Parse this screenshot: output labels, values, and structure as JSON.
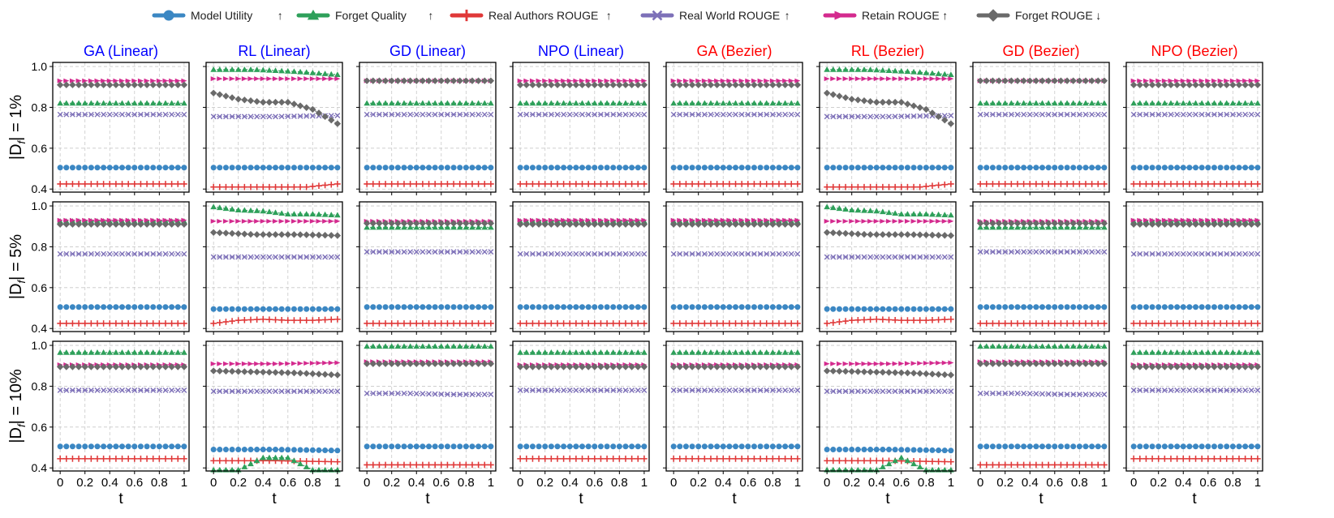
{
  "colors": {
    "model_utility": "#3b87c3",
    "forget_quality": "#2ea05a",
    "real_authors": "#e03838",
    "real_world": "#7d70b8",
    "retain": "#d42a8e",
    "forget_rouge": "#6a6a6a",
    "linear_title": "#0000ff",
    "bezier_title": "#ff0000"
  },
  "legend": [
    {
      "key": "model_utility",
      "label": "Model Utility",
      "arrow": "↑",
      "marker": "circle"
    },
    {
      "key": "forget_quality",
      "label": "Forget Quality",
      "arrow": "↑",
      "marker": "triangle"
    },
    {
      "key": "real_authors",
      "label": "Real Authors ROUGE",
      "arrow": "↑",
      "marker": "plus"
    },
    {
      "key": "real_world",
      "label": "Real World ROUGE",
      "arrow": "↑",
      "marker": "x"
    },
    {
      "key": "retain",
      "label": "Retain ROUGE",
      "arrow": "↑",
      "marker": "tri-right"
    },
    {
      "key": "forget_rouge",
      "label": "Forget ROUGE",
      "arrow": "↓",
      "marker": "diamond"
    }
  ],
  "chart_data": {
    "type": "line",
    "columns": [
      "GA (Linear)",
      "RL (Linear)",
      "GD (Linear)",
      "NPO (Linear)",
      "GA (Bezier)",
      "RL (Bezier)",
      "GD (Bezier)",
      "NPO (Bezier)"
    ],
    "column_colors": [
      "linear_title",
      "linear_title",
      "linear_title",
      "linear_title",
      "bezier_title",
      "bezier_title",
      "bezier_title",
      "bezier_title"
    ],
    "rows": [
      "|D_f| = 1%",
      "|D_f| = 5%",
      "|D_f| = 10%"
    ],
    "row_label_prefix": "|D",
    "row_label_sub": "f",
    "row_label_values": [
      "| = 1%",
      "| = 5%",
      "| = 10%"
    ],
    "xlabel": "t",
    "x_ticks": [
      "0",
      "0.2",
      "0.4",
      "0.6",
      "0.8",
      "1"
    ],
    "y_ticks": [
      "0.4",
      "0.6",
      "0.8",
      "1.0"
    ],
    "xlim": [
      -0.06,
      1.04
    ],
    "ylim": [
      0.385,
      1.02
    ],
    "points": 21,
    "grid": true,
    "panels": [
      [
        {
          "model_utility": [
            0.505,
            0.505
          ],
          "forget_quality": [
            0.82,
            0.82
          ],
          "real_authors": [
            0.425,
            0.425
          ],
          "real_world": [
            0.765,
            0.765
          ],
          "retain": [
            0.93,
            0.93
          ],
          "forget_rouge": [
            0.91,
            0.91
          ]
        },
        {
          "model_utility": [
            0.505,
            0.505
          ],
          "forget_quality": [
            0.985,
            0.985,
            0.975,
            0.96
          ],
          "real_authors": [
            0.41,
            0.41,
            0.41,
            0.41,
            0.425
          ],
          "real_world": [
            0.755,
            0.755,
            0.76
          ],
          "retain": [
            0.94,
            0.94
          ],
          "forget_rouge": [
            0.87,
            0.84,
            0.825,
            0.825,
            0.79,
            0.72
          ]
        },
        {
          "model_utility": [
            0.505,
            0.505
          ],
          "forget_quality": [
            0.82,
            0.82
          ],
          "real_authors": [
            0.425,
            0.425
          ],
          "real_world": [
            0.765,
            0.765
          ],
          "retain": [
            0.93,
            0.93
          ],
          "forget_rouge": [
            0.93,
            0.93
          ]
        },
        {
          "model_utility": [
            0.505,
            0.505
          ],
          "forget_quality": [
            0.82,
            0.82
          ],
          "real_authors": [
            0.425,
            0.425
          ],
          "real_world": [
            0.765,
            0.765
          ],
          "retain": [
            0.93,
            0.93
          ],
          "forget_rouge": [
            0.91,
            0.91
          ]
        },
        {
          "model_utility": [
            0.505,
            0.505
          ],
          "forget_quality": [
            0.82,
            0.82
          ],
          "real_authors": [
            0.425,
            0.425
          ],
          "real_world": [
            0.765,
            0.765
          ],
          "retain": [
            0.93,
            0.93
          ],
          "forget_rouge": [
            0.91,
            0.91
          ]
        },
        {
          "model_utility": [
            0.505,
            0.505
          ],
          "forget_quality": [
            0.985,
            0.985,
            0.975,
            0.96
          ],
          "real_authors": [
            0.41,
            0.41,
            0.41,
            0.41,
            0.425
          ],
          "real_world": [
            0.755,
            0.755,
            0.76
          ],
          "retain": [
            0.94,
            0.94
          ],
          "forget_rouge": [
            0.87,
            0.84,
            0.825,
            0.825,
            0.79,
            0.72
          ]
        },
        {
          "model_utility": [
            0.505,
            0.505
          ],
          "forget_quality": [
            0.82,
            0.82
          ],
          "real_authors": [
            0.425,
            0.425
          ],
          "real_world": [
            0.765,
            0.765
          ],
          "retain": [
            0.93,
            0.93
          ],
          "forget_rouge": [
            0.93,
            0.93
          ]
        },
        {
          "model_utility": [
            0.505,
            0.505
          ],
          "forget_quality": [
            0.82,
            0.82
          ],
          "real_authors": [
            0.425,
            0.425
          ],
          "real_world": [
            0.765,
            0.765
          ],
          "retain": [
            0.93,
            0.93
          ],
          "forget_rouge": [
            0.91,
            0.91
          ]
        }
      ],
      [
        {
          "model_utility": [
            0.505,
            0.505
          ],
          "forget_quality": [
            0.925,
            0.925
          ],
          "real_authors": [
            0.425,
            0.425
          ],
          "real_world": [
            0.765,
            0.765
          ],
          "retain": [
            0.93,
            0.93
          ],
          "forget_rouge": [
            0.91,
            0.91
          ]
        },
        {
          "model_utility": [
            0.495,
            0.495
          ],
          "forget_quality": [
            0.995,
            0.98,
            0.975,
            0.96,
            0.96,
            0.955
          ],
          "real_authors": [
            0.425,
            0.44,
            0.445,
            0.44,
            0.44,
            0.445
          ],
          "real_world": [
            0.75,
            0.75
          ],
          "retain": [
            0.925,
            0.925
          ],
          "forget_rouge": [
            0.87,
            0.86,
            0.86,
            0.855
          ]
        },
        {
          "model_utility": [
            0.505,
            0.505
          ],
          "forget_quality": [
            0.895,
            0.895
          ],
          "real_authors": [
            0.425,
            0.425
          ],
          "real_world": [
            0.775,
            0.775
          ],
          "retain": [
            0.925,
            0.925
          ],
          "forget_rouge": [
            0.915,
            0.915
          ]
        },
        {
          "model_utility": [
            0.505,
            0.505
          ],
          "forget_quality": [
            0.925,
            0.925
          ],
          "real_authors": [
            0.425,
            0.425
          ],
          "real_world": [
            0.765,
            0.765
          ],
          "retain": [
            0.93,
            0.93
          ],
          "forget_rouge": [
            0.91,
            0.91
          ]
        },
        {
          "model_utility": [
            0.505,
            0.505
          ],
          "forget_quality": [
            0.925,
            0.925
          ],
          "real_authors": [
            0.425,
            0.425
          ],
          "real_world": [
            0.765,
            0.765
          ],
          "retain": [
            0.93,
            0.93
          ],
          "forget_rouge": [
            0.91,
            0.91
          ]
        },
        {
          "model_utility": [
            0.495,
            0.495
          ],
          "forget_quality": [
            0.995,
            0.98,
            0.975,
            0.96,
            0.96,
            0.955
          ],
          "real_authors": [
            0.425,
            0.44,
            0.445,
            0.44,
            0.44,
            0.445
          ],
          "real_world": [
            0.75,
            0.75
          ],
          "retain": [
            0.925,
            0.925
          ],
          "forget_rouge": [
            0.87,
            0.86,
            0.86,
            0.855
          ]
        },
        {
          "model_utility": [
            0.505,
            0.505
          ],
          "forget_quality": [
            0.895,
            0.895
          ],
          "real_authors": [
            0.425,
            0.425
          ],
          "real_world": [
            0.775,
            0.775
          ],
          "retain": [
            0.925,
            0.925
          ],
          "forget_rouge": [
            0.915,
            0.915
          ]
        },
        {
          "model_utility": [
            0.505,
            0.505
          ],
          "forget_quality": [
            0.925,
            0.925
          ],
          "real_authors": [
            0.425,
            0.425
          ],
          "real_world": [
            0.765,
            0.765
          ],
          "retain": [
            0.93,
            0.93
          ],
          "forget_rouge": [
            0.91,
            0.91
          ]
        }
      ],
      [
        {
          "model_utility": [
            0.505,
            0.505
          ],
          "forget_quality": [
            0.965,
            0.965
          ],
          "real_authors": [
            0.445,
            0.445
          ],
          "real_world": [
            0.78,
            0.78
          ],
          "retain": [
            0.905,
            0.905
          ],
          "forget_rouge": [
            0.895,
            0.895
          ]
        },
        {
          "model_utility": [
            0.49,
            0.49,
            0.485
          ],
          "forget_quality": [
            0.39,
            0.39,
            0.45,
            0.45,
            0.39,
            0.39
          ],
          "real_authors": [
            0.435,
            0.435,
            0.43
          ],
          "real_world": [
            0.775,
            0.775
          ],
          "retain": [
            0.91,
            0.91,
            0.915
          ],
          "forget_rouge": [
            0.875,
            0.87,
            0.865,
            0.855
          ]
        },
        {
          "model_utility": [
            0.505,
            0.505
          ],
          "forget_quality": [
            0.995,
            0.995
          ],
          "real_authors": [
            0.415,
            0.415
          ],
          "real_world": [
            0.765,
            0.765,
            0.76,
            0.76
          ],
          "retain": [
            0.92,
            0.92
          ],
          "forget_rouge": [
            0.91,
            0.91
          ]
        },
        {
          "model_utility": [
            0.505,
            0.505
          ],
          "forget_quality": [
            0.965,
            0.965
          ],
          "real_authors": [
            0.445,
            0.445
          ],
          "real_world": [
            0.78,
            0.78
          ],
          "retain": [
            0.905,
            0.905
          ],
          "forget_rouge": [
            0.895,
            0.895
          ]
        },
        {
          "model_utility": [
            0.505,
            0.505
          ],
          "forget_quality": [
            0.965,
            0.965
          ],
          "real_authors": [
            0.445,
            0.445
          ],
          "real_world": [
            0.78,
            0.78
          ],
          "retain": [
            0.905,
            0.905
          ],
          "forget_rouge": [
            0.895,
            0.895
          ]
        },
        {
          "model_utility": [
            0.49,
            0.49,
            0.485
          ],
          "forget_quality": [
            0.39,
            0.39,
            0.39,
            0.45,
            0.39,
            0.39
          ],
          "real_authors": [
            0.435,
            0.435,
            0.43
          ],
          "real_world": [
            0.775,
            0.775
          ],
          "retain": [
            0.91,
            0.91,
            0.915
          ],
          "forget_rouge": [
            0.875,
            0.87,
            0.865,
            0.855
          ]
        },
        {
          "model_utility": [
            0.505,
            0.505
          ],
          "forget_quality": [
            0.995,
            0.995
          ],
          "real_authors": [
            0.415,
            0.415
          ],
          "real_world": [
            0.765,
            0.765,
            0.76,
            0.76
          ],
          "retain": [
            0.92,
            0.92
          ],
          "forget_rouge": [
            0.91,
            0.91
          ]
        },
        {
          "model_utility": [
            0.505,
            0.505
          ],
          "forget_quality": [
            0.965,
            0.965
          ],
          "real_authors": [
            0.445,
            0.445
          ],
          "real_world": [
            0.78,
            0.78
          ],
          "retain": [
            0.905,
            0.905
          ],
          "forget_rouge": [
            0.895,
            0.895
          ]
        }
      ]
    ]
  }
}
